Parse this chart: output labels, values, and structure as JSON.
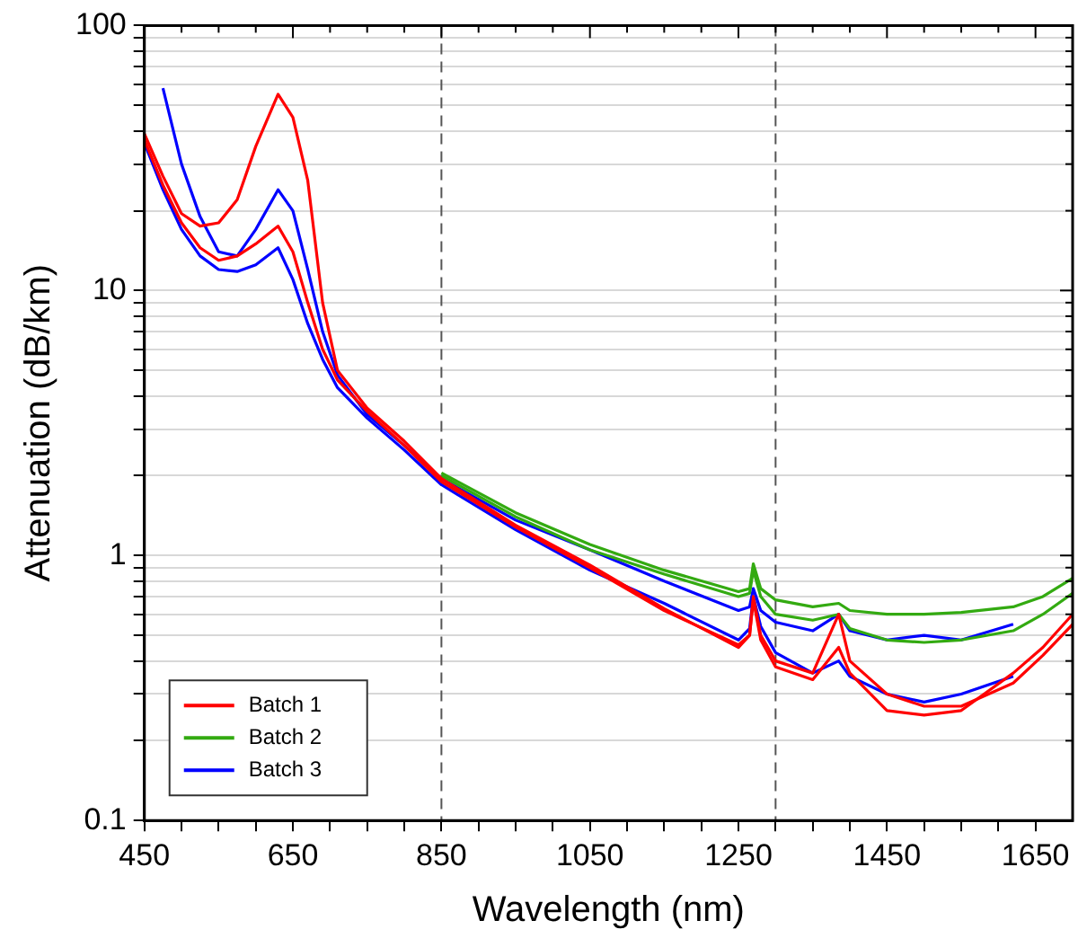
{
  "chart_data": {
    "type": "line",
    "xlabel": "Wavelength (nm)",
    "ylabel": "Attenuation (dB/km)",
    "x": [
      450,
      475,
      500,
      525,
      550,
      575,
      600,
      630,
      650,
      670,
      690,
      710,
      750,
      800,
      850,
      950,
      1050,
      1150,
      1250,
      1265,
      1270,
      1280,
      1300,
      1350,
      1385,
      1400,
      1450,
      1500,
      1550,
      1620,
      1660,
      1700
    ],
    "series": [
      {
        "name": "Batch 1",
        "color": "#ff0000",
        "values": [
          39,
          27,
          19.5,
          17.5,
          18,
          22,
          35,
          55,
          45,
          26,
          9,
          5,
          3.6,
          2.7,
          1.95,
          1.3,
          0.92,
          0.63,
          0.45,
          0.5,
          0.7,
          0.5,
          0.4,
          0.36,
          0.6,
          0.4,
          0.3,
          0.27,
          0.27,
          0.33,
          0.42,
          0.55
        ]
      },
      {
        "color": "#ff0000",
        "values": [
          37,
          25,
          18,
          14.5,
          13,
          13.5,
          15,
          17.5,
          14,
          9,
          6,
          4.6,
          3.5,
          2.6,
          1.9,
          1.28,
          0.9,
          0.62,
          0.46,
          0.5,
          0.68,
          0.48,
          0.38,
          0.34,
          0.45,
          0.36,
          0.26,
          0.25,
          0.26,
          0.36,
          0.45,
          0.6
        ]
      },
      {
        "name": "Batch 2",
        "color": "#33aa11",
        "values": [
          null,
          null,
          null,
          null,
          null,
          null,
          null,
          null,
          null,
          null,
          null,
          null,
          null,
          null,
          2.05,
          1.45,
          1.1,
          0.88,
          0.73,
          0.75,
          0.93,
          0.75,
          0.68,
          0.64,
          0.66,
          0.62,
          0.6,
          0.6,
          0.61,
          0.64,
          0.7,
          0.82
        ]
      },
      {
        "color": "#33aa11",
        "values": [
          null,
          null,
          null,
          null,
          null,
          null,
          null,
          null,
          null,
          null,
          null,
          null,
          null,
          null,
          2,
          1.4,
          1.05,
          0.85,
          0.7,
          0.72,
          0.88,
          0.7,
          0.6,
          0.57,
          0.6,
          0.53,
          0.48,
          0.47,
          0.48,
          0.52,
          0.6,
          0.72
        ]
      },
      {
        "name": "Batch 3",
        "color": "#0000ff",
        "values": [
          null,
          58,
          30,
          19,
          14,
          13.5,
          17,
          24,
          20,
          12,
          7,
          4.8,
          3.4,
          2.6,
          1.95,
          1.36,
          1.05,
          0.8,
          0.62,
          0.64,
          0.75,
          0.62,
          0.56,
          0.52,
          0.6,
          0.52,
          0.48,
          0.5,
          0.48,
          0.55,
          null,
          null
        ]
      },
      {
        "color": "#0000ff",
        "values": [
          36,
          24,
          17,
          13.5,
          12,
          11.8,
          12.5,
          14.5,
          11,
          7.5,
          5.5,
          4.3,
          3.3,
          2.5,
          1.85,
          1.25,
          0.88,
          0.66,
          0.48,
          0.53,
          0.7,
          0.54,
          0.43,
          0.36,
          0.4,
          0.35,
          0.3,
          0.28,
          0.3,
          0.35,
          null,
          null
        ]
      }
    ],
    "log": "y",
    "xlim": [
      450,
      1700
    ],
    "xticks": [
      450,
      {
        "value": 500,
        "label": null
      },
      {
        "value": 550,
        "label": null
      },
      {
        "value": 600,
        "label": null
      },
      650,
      {
        "value": 700,
        "label": null
      },
      {
        "value": 750,
        "label": null
      },
      {
        "value": 800,
        "label": null
      },
      850,
      {
        "value": 900,
        "label": null
      },
      {
        "value": 950,
        "label": null
      },
      {
        "value": 1000,
        "label": null
      },
      1050,
      {
        "value": 1100,
        "label": null
      },
      {
        "value": 1150,
        "label": null
      },
      {
        "value": 1200,
        "label": null
      },
      1250,
      {
        "value": 1300,
        "label": null
      },
      {
        "value": 1350,
        "label": null
      },
      {
        "value": 1400,
        "label": null
      },
      1450,
      {
        "value": 1500,
        "label": null
      },
      {
        "value": 1550,
        "label": null
      },
      {
        "value": 1600,
        "label": null
      },
      1650
    ],
    "ylim": [
      0.1,
      100
    ],
    "yticks": [
      0.1,
      {
        "value": 0.2,
        "label": null
      },
      {
        "value": 0.3,
        "label": null
      },
      {
        "value": 0.4,
        "label": null
      },
      {
        "value": 0.5,
        "label": null
      },
      {
        "value": 0.6,
        "label": null
      },
      {
        "value": 0.7,
        "label": null
      },
      {
        "value": 0.8,
        "label": null
      },
      {
        "value": 0.9,
        "label": null
      },
      1,
      {
        "value": 2,
        "label": null
      },
      {
        "value": 3,
        "label": null
      },
      {
        "value": 4,
        "label": null
      },
      {
        "value": 5,
        "label": null
      },
      {
        "value": 6,
        "label": null
      },
      {
        "value": 7,
        "label": null
      },
      {
        "value": 8,
        "label": null
      },
      {
        "value": 9,
        "label": null
      },
      10,
      {
        "value": 20,
        "label": null
      },
      {
        "value": 30,
        "label": null
      },
      {
        "value": 40,
        "label": null
      },
      {
        "value": 50,
        "label": null
      },
      {
        "value": 60,
        "label": null
      },
      {
        "value": 70,
        "label": null
      },
      {
        "value": 80,
        "label": null
      },
      {
        "value": 90,
        "label": null
      },
      100
    ],
    "grid": "y",
    "legend": "bottom left",
    "marker": "none",
    "line_style": "solid",
    "ref_lines": [
      {
        "axis": "x",
        "value": 850,
        "color": "#555555",
        "line_style": "dashed"
      },
      {
        "axis": "x",
        "value": 1300,
        "color": "#555555",
        "line_style": "dashed"
      }
    ]
  }
}
